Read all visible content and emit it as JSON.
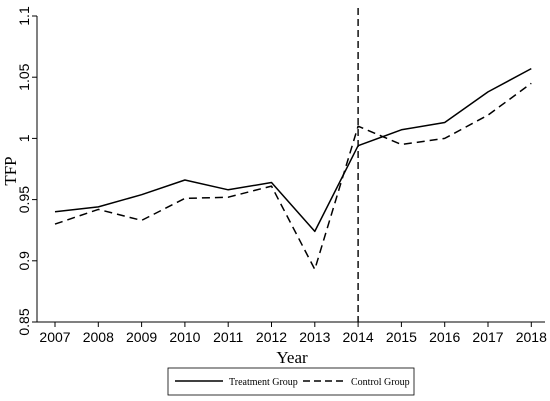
{
  "chart_data": {
    "type": "line",
    "xlabel": "Year",
    "ylabel": "TFP",
    "x": [
      2007,
      2008,
      2009,
      2010,
      2011,
      2012,
      2013,
      2014,
      2015,
      2016,
      2017,
      2018
    ],
    "ylim": [
      0.85,
      1.1
    ],
    "yticks": [
      0.85,
      0.9,
      0.95,
      1,
      1.05,
      1.1
    ],
    "ytick_labels": [
      "0.85",
      "0.9",
      "0.95",
      "1",
      "1.05",
      "1.1"
    ],
    "reference_line_x": 2014,
    "series": [
      {
        "name": "Treatment Group",
        "style": "solid",
        "color": "#000000",
        "values": [
          0.94,
          0.944,
          0.954,
          0.966,
          0.958,
          0.964,
          0.924,
          0.994,
          1.007,
          1.013,
          1.038,
          1.057
        ]
      },
      {
        "name": "Control Group",
        "style": "dashed",
        "color": "#000000",
        "values": [
          0.93,
          0.942,
          0.933,
          0.951,
          0.952,
          0.961,
          0.893,
          1.01,
          0.995,
          1.0,
          1.019,
          1.045
        ]
      }
    ],
    "grid": false,
    "legend_position": "bottom"
  }
}
